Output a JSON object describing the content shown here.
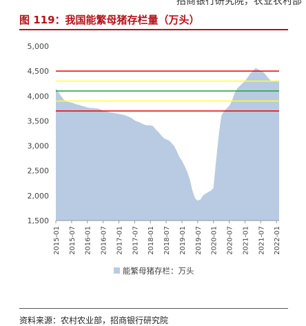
{
  "header": {
    "cropped_text": "招商银行研究院，农业农村部",
    "figure_title": "图 119：我国能繁母猪存栏量（万头）",
    "source": "资料来源：农村农业部，招商银行研究院"
  },
  "colors": {
    "area_fill": "#b8cbe2",
    "title_red": "#b5121b",
    "ref_red": "#e60000",
    "ref_yellow": "#ffff33",
    "ref_green": "#1f9c3a"
  },
  "chart_data": {
    "type": "area",
    "title": "",
    "xlabel": "",
    "ylabel": "",
    "ylim": [
      1500,
      5000
    ],
    "yticks": [
      "1,500",
      "2,000",
      "2,500",
      "3,000",
      "3,500",
      "4,000",
      "4,500",
      "5,000"
    ],
    "xticks": [
      "2015-01",
      "2015-07",
      "2016-01",
      "2016-07",
      "2017-01",
      "2017-07",
      "2018-01",
      "2018-07",
      "2019-01",
      "2019-07",
      "2020-01",
      "2020-07",
      "2021-01",
      "2021-07",
      "2022-01"
    ],
    "legend": {
      "label": "能繁母猪存栏：万头",
      "position": "bottom"
    },
    "reference_lines": [
      {
        "value": 4500,
        "color": "red"
      },
      {
        "value": 4300,
        "color": "yellow"
      },
      {
        "value": 4100,
        "color": "green"
      },
      {
        "value": 3900,
        "color": "yellow"
      },
      {
        "value": 3700,
        "color": "red"
      }
    ],
    "series": [
      {
        "name": "能繁母猪存栏：万头",
        "x": [
          "2015-01",
          "2015-02",
          "2015-03",
          "2015-04",
          "2015-05",
          "2015-06",
          "2015-07",
          "2015-08",
          "2015-09",
          "2015-10",
          "2015-11",
          "2015-12",
          "2016-01",
          "2016-02",
          "2016-03",
          "2016-04",
          "2016-05",
          "2016-06",
          "2016-07",
          "2016-08",
          "2016-09",
          "2016-10",
          "2016-11",
          "2016-12",
          "2017-01",
          "2017-02",
          "2017-03",
          "2017-04",
          "2017-05",
          "2017-06",
          "2017-07",
          "2017-08",
          "2017-09",
          "2017-10",
          "2017-11",
          "2017-12",
          "2018-01",
          "2018-02",
          "2018-03",
          "2018-04",
          "2018-05",
          "2018-06",
          "2018-07",
          "2018-08",
          "2018-09",
          "2018-10",
          "2018-11",
          "2018-12",
          "2019-01",
          "2019-02",
          "2019-03",
          "2019-04",
          "2019-05",
          "2019-06",
          "2019-07",
          "2019-08",
          "2019-09",
          "2019-10",
          "2019-11",
          "2019-12",
          "2020-01",
          "2020-02",
          "2020-03",
          "2020-04",
          "2020-05",
          "2020-06",
          "2020-07",
          "2020-08",
          "2020-09",
          "2020-10",
          "2020-11",
          "2020-12",
          "2021-01",
          "2021-02",
          "2021-03",
          "2021-04",
          "2021-05",
          "2021-06",
          "2021-07",
          "2021-08",
          "2021-09",
          "2021-10",
          "2021-11",
          "2021-12",
          "2022-01",
          "2022-02"
        ],
        "values": [
          4150,
          4080,
          4000,
          3930,
          3890,
          3880,
          3870,
          3850,
          3830,
          3820,
          3800,
          3790,
          3770,
          3760,
          3760,
          3750,
          3750,
          3730,
          3710,
          3690,
          3680,
          3670,
          3660,
          3650,
          3640,
          3630,
          3620,
          3600,
          3580,
          3550,
          3510,
          3490,
          3470,
          3440,
          3420,
          3410,
          3410,
          3400,
          3330,
          3280,
          3220,
          3160,
          3130,
          3110,
          3060,
          3000,
          2900,
          2780,
          2700,
          2600,
          2480,
          2330,
          2100,
          1950,
          1900,
          1920,
          2000,
          2040,
          2070,
          2100,
          2150,
          2700,
          3200,
          3600,
          3700,
          3750,
          3800,
          3900,
          4050,
          4150,
          4200,
          4250,
          4300,
          4370,
          4450,
          4500,
          4560,
          4540,
          4500,
          4480,
          4420,
          4350,
          4300,
          4290,
          4320,
          4290
        ]
      }
    ]
  }
}
